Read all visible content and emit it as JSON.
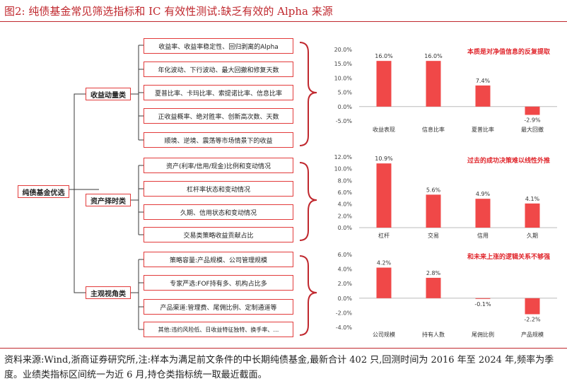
{
  "title": "图2:  纯债基金常见筛选指标和 IC 有效性测试:缺乏有效的 Alpha 来源",
  "footnote": "资料来源:Wind,浙商证券研究所,注:样本为满足前文条件的中长期纯债基金,最新合计 402 只,回测时间为 2016 年至 2024 年,频率为季度。业绩类指标区间统一为近 6 月,持仓类指标统一取最近截面。",
  "colors": {
    "accent": "#c0282e",
    "bar": "#f04848",
    "border": "#e23b3b",
    "line": "#3a3a3a",
    "bracket": "#c0282e"
  },
  "tree": {
    "root": "纯债基金优选",
    "groups": [
      {
        "label": "收益动量类",
        "items": [
          "收益率、收益率稳定性、回归剥离的Alpha",
          "年化波动、下行波动、最大回撤和修复天数",
          "夏普比率、卡玛比率、索提诺比率、信息比率",
          "正收益概率、绝对胜率、创新高次数、天数",
          "顺境、逆境、震荡等市场情景下的收益"
        ]
      },
      {
        "label": "资产择时类",
        "items": [
          "资产(利率/信用/现金)比例和变动情况",
          "杠杆率状态和变动情况",
          "久期、信用状态和变动情况",
          "交易类策略收益贡献占比"
        ]
      },
      {
        "label": "主观视角类",
        "items": [
          "策略容量:产品规模、公司管理规模",
          "专家严选:FOF持有多、机构占比多",
          "产品渠道:管理费、尾佣比例、定制通道等",
          "其他:违约风险低、日收益特征独特、换手率、…"
        ]
      }
    ]
  },
  "chart_data": [
    {
      "type": "bar",
      "title": "本质是对净值信息的反复提取",
      "categories": [
        "收益表现",
        "信息比率",
        "夏普比率",
        "最大回撤"
      ],
      "values": [
        16.0,
        16.0,
        7.4,
        -2.9
      ],
      "labels": [
        "16.0%",
        "16.0%",
        "7.4%",
        "-2.9%"
      ],
      "ylim": [
        -5,
        20
      ],
      "ticks": [
        20,
        15,
        10,
        5,
        0,
        -5
      ],
      "tick_labels": [
        "20.0%",
        "15.0%",
        "10.0%",
        "5.0%",
        "0.0%",
        "-5.0%"
      ]
    },
    {
      "type": "bar",
      "title": "过去的成功决策难以线性外推",
      "categories": [
        "杠杆",
        "交易",
        "信用",
        "久期"
      ],
      "values": [
        10.9,
        5.6,
        4.9,
        4.1
      ],
      "labels": [
        "10.9%",
        "5.6%",
        "4.9%",
        "4.1%"
      ],
      "ylim": [
        0,
        12
      ],
      "ticks": [
        12,
        10,
        8,
        6,
        4,
        2,
        0
      ],
      "tick_labels": [
        "12.0%",
        "10.0%",
        "8.0%",
        "6.0%",
        "4.0%",
        "2.0%",
        "0.0%"
      ]
    },
    {
      "type": "bar",
      "title": "和未来上涨的逻辑关系不够强",
      "categories": [
        "公司规模",
        "持有人数",
        "尾佣比例",
        "产品规模"
      ],
      "values": [
        4.2,
        2.8,
        -0.1,
        -2.2
      ],
      "labels": [
        "4.2%",
        "2.8%",
        "-0.1%",
        "-2.2%"
      ],
      "ylim": [
        -4,
        6
      ],
      "ticks": [
        6,
        4,
        2,
        0,
        -2,
        -4
      ],
      "tick_labels": [
        "6.0%",
        "4.0%",
        "2.0%",
        "0.0%",
        "-2.0%",
        "-4.0%"
      ]
    }
  ]
}
